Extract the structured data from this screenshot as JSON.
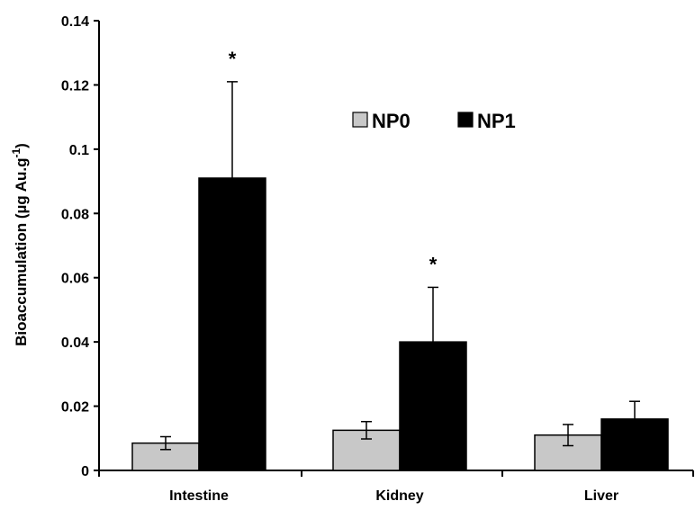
{
  "chart_data": {
    "type": "bar",
    "title": "",
    "xlabel": "",
    "ylabel_parts": [
      "Bioaccumulation (µg Au.g",
      "-1",
      ")"
    ],
    "ylim": [
      0,
      0.14
    ],
    "yticks": [
      "0",
      "0.02",
      "0.04",
      "0.06",
      "0.08",
      "0.1",
      "0.12",
      "0.14"
    ],
    "categories": [
      "Intestine",
      "Kidney",
      "Liver"
    ],
    "series": [
      {
        "name": "NP0",
        "color": "#c8c8c8",
        "values": [
          0.0085,
          0.0125,
          0.011
        ],
        "errors": [
          0.002,
          0.0027,
          0.0033
        ]
      },
      {
        "name": "NP1",
        "color": "#000000",
        "values": [
          0.091,
          0.04,
          0.016
        ],
        "errors": [
          0.03,
          0.017,
          0.0055
        ]
      }
    ],
    "annotations": [
      {
        "text": "*",
        "category": "Intestine",
        "series": "NP1"
      },
      {
        "text": "*",
        "category": "Kidney",
        "series": "NP1"
      }
    ],
    "grid": false,
    "legend_position": "top-right"
  }
}
